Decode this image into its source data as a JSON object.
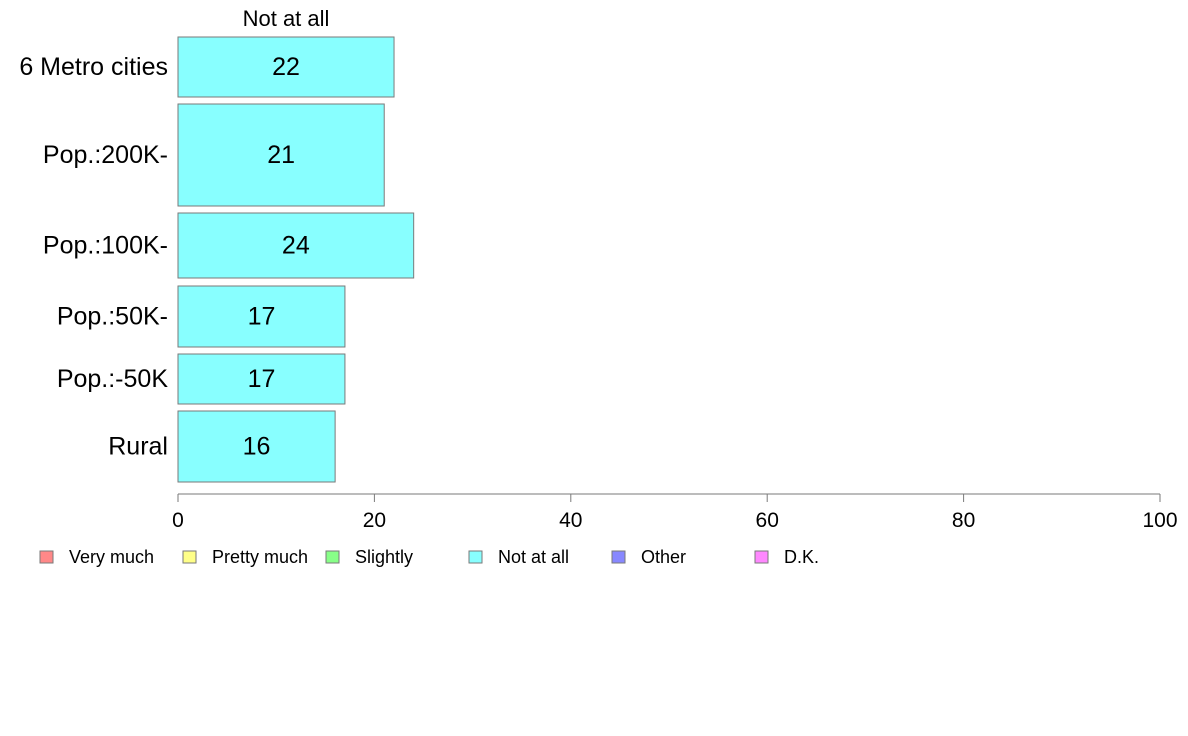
{
  "chart_data": {
    "type": "bar",
    "orientation": "horizontal",
    "series_title": "Not at all",
    "categories": [
      "6 Metro cities",
      "Pop.:200K-",
      "Pop.:100K-",
      "Pop.:50K-",
      "Pop.:-50K",
      "Rural"
    ],
    "series": [
      {
        "name": "Not at all",
        "values": [
          22,
          21,
          24,
          17,
          17,
          16
        ],
        "color": "#88ffff"
      }
    ],
    "xlim": [
      0,
      100
    ],
    "x_ticks": [
      "0",
      "20",
      "40",
      "60",
      "80",
      "100"
    ],
    "grid": false,
    "legend_placement": "bottom-left",
    "legend": [
      {
        "label": "Very much",
        "color": "#ff8888"
      },
      {
        "label": "Pretty much",
        "color": "#ffff88"
      },
      {
        "label": "Slightly",
        "color": "#88ff88"
      },
      {
        "label": "Not at all",
        "color": "#88ffff"
      },
      {
        "label": "Other",
        "color": "#8888ff"
      },
      {
        "label": "D.K.",
        "color": "#ff88ff"
      }
    ]
  }
}
